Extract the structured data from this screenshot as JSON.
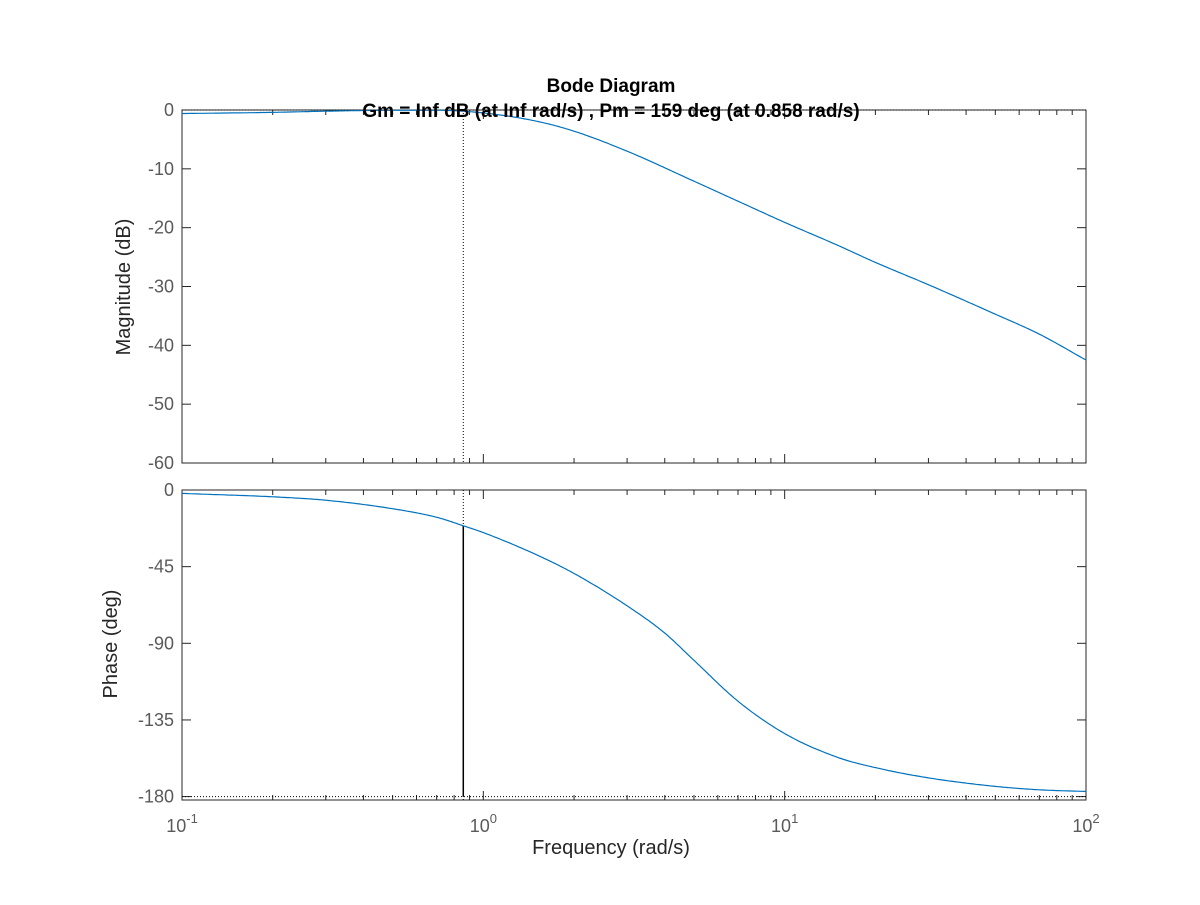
{
  "chart_data": [
    {
      "type": "line",
      "panel": "magnitude",
      "title": "Bode Diagram",
      "subtitle": "Gm = Inf dB (at Inf rad/s) ,  Pm = 159 deg (at 0.858 rad/s)",
      "xlabel": "",
      "ylabel": "Magnitude (dB)",
      "xscale": "log",
      "xlim": [
        0.1,
        100
      ],
      "ylim": [
        -60,
        0
      ],
      "yticks": [
        0,
        -10,
        -20,
        -30,
        -40,
        -50,
        -60
      ],
      "ytick_labels": [
        "0",
        "-10",
        "-20",
        "-30",
        "-40",
        "-50",
        "-60"
      ],
      "grid": false,
      "color": "#0072bd",
      "x": [
        0.1,
        0.2,
        0.3,
        0.5,
        0.7,
        1.0,
        1.5,
        2.0,
        3.0,
        5.0,
        7.0,
        10.0,
        15.0,
        20.0,
        30.0,
        50.0,
        70.0,
        100.0
      ],
      "values": [
        -0.6,
        -0.4,
        -0.2,
        -0.05,
        -0.05,
        -0.5,
        -1.9,
        -3.6,
        -7.0,
        -12.1,
        -15.5,
        -19.1,
        -23.0,
        -25.9,
        -29.7,
        -34.7,
        -38.1,
        -42.5
      ],
      "reference_lines": [
        {
          "axis": "y",
          "value": 0,
          "style": "dotted"
        },
        {
          "axis": "x",
          "value": 0.858,
          "style": "dotted"
        }
      ]
    },
    {
      "type": "line",
      "panel": "phase",
      "xlabel": "Frequency  (rad/s)",
      "ylabel": "Phase (deg)",
      "xscale": "log",
      "xlim": [
        0.1,
        100
      ],
      "ylim": [
        -182,
        0
      ],
      "xticks": [
        0.1,
        1,
        10,
        100
      ],
      "xtick_labels": [
        {
          "base": "10",
          "exp": "-1"
        },
        {
          "base": "10",
          "exp": "0"
        },
        {
          "base": "10",
          "exp": "1"
        },
        {
          "base": "10",
          "exp": "2"
        }
      ],
      "yticks": [
        0,
        -45,
        -90,
        -135,
        -180
      ],
      "ytick_labels": [
        "0",
        "-45",
        "-90",
        "-135",
        "-180"
      ],
      "grid": false,
      "color": "#0072bd",
      "x": [
        0.1,
        0.2,
        0.3,
        0.5,
        0.7,
        0.858,
        1.0,
        1.5,
        2.0,
        3.0,
        4.0,
        5.0,
        7.0,
        10.0,
        15.0,
        20.0,
        30.0,
        50.0,
        70.0,
        100.0
      ],
      "values": [
        -2,
        -4,
        -6,
        -11,
        -16,
        -21,
        -25,
        -38,
        -49,
        -68,
        -84,
        -100,
        -124,
        -143,
        -157,
        -163,
        -169,
        -174,
        -176,
        -177
      ],
      "reference_lines": [
        {
          "axis": "y",
          "value": -180,
          "style": "dotted"
        },
        {
          "axis": "x",
          "value": 0.858,
          "style": "dotted"
        }
      ],
      "margin_marker": {
        "x": 0.858,
        "from": -180,
        "to": -21,
        "color": "#000000"
      }
    }
  ]
}
